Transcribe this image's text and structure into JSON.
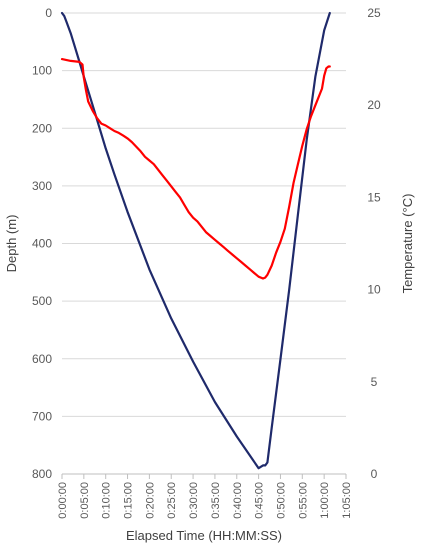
{
  "chart_data": {
    "type": "line",
    "xlabel": "Elapsed Time (HH:MM:SS)",
    "ylabel_left": "Depth (m)",
    "ylabel_right": "Temperature (°C)",
    "x_ticks": [
      "0:00:00",
      "0:05:00",
      "0:10:00",
      "0:15:00",
      "0:20:00",
      "0:25:00",
      "0:30:00",
      "0:35:00",
      "0:40:00",
      "0:45:00",
      "0:50:00",
      "0:55:00",
      "1:00:00",
      "1:05:00"
    ],
    "xlim_minutes": [
      0,
      65
    ],
    "y_left_ticks": [
      0,
      100,
      200,
      300,
      400,
      500,
      600,
      700,
      800
    ],
    "y_left_lim": [
      0,
      800
    ],
    "y_left_inverted": true,
    "y_right_ticks": [
      0,
      5,
      10,
      15,
      20,
      25
    ],
    "y_right_lim": [
      0,
      25
    ],
    "grid": "horizontal",
    "legend": "none",
    "series": [
      {
        "axis": "left",
        "color": "#1f2a6b",
        "x_minutes": [
          0,
          0.5,
          1,
          2,
          3,
          4,
          5,
          6,
          8,
          10,
          12,
          15,
          20,
          25,
          30,
          35,
          40,
          45,
          46,
          46.5,
          47,
          48,
          50,
          52,
          54,
          56,
          58,
          60,
          61.3
        ],
        "y": [
          0,
          5,
          15,
          35,
          60,
          85,
          110,
          135,
          185,
          235,
          280,
          345,
          445,
          530,
          605,
          675,
          735,
          790,
          785,
          785,
          780,
          720,
          600,
          480,
          350,
          220,
          110,
          30,
          0
        ]
      },
      {
        "axis": "right",
        "color": "#ff0000",
        "x_minutes": [
          0,
          2,
          4,
          4.7,
          5,
          5.5,
          6,
          7,
          8,
          9,
          10,
          11,
          12,
          13,
          14,
          15,
          16,
          17,
          18,
          19,
          20,
          21,
          22,
          23,
          24,
          25,
          26,
          27,
          28,
          29,
          30,
          31,
          32,
          33,
          34,
          35,
          36,
          37,
          38,
          39,
          40,
          41,
          42,
          43,
          44,
          45,
          46,
          46.5,
          47,
          48,
          49,
          50,
          51,
          52,
          53,
          54,
          55,
          56,
          57,
          58,
          59,
          59.5,
          60,
          60.5,
          61,
          61.3
        ],
        "y": [
          22.5,
          22.4,
          22.35,
          22.2,
          21.5,
          20.8,
          20.2,
          19.7,
          19.3,
          19.0,
          18.9,
          18.75,
          18.6,
          18.5,
          18.35,
          18.2,
          18.0,
          17.75,
          17.5,
          17.2,
          17.0,
          16.8,
          16.5,
          16.2,
          15.9,
          15.6,
          15.3,
          15.0,
          14.6,
          14.2,
          13.9,
          13.7,
          13.4,
          13.1,
          12.9,
          12.7,
          12.5,
          12.3,
          12.1,
          11.9,
          11.7,
          11.5,
          11.3,
          11.1,
          10.9,
          10.7,
          10.6,
          10.65,
          10.8,
          11.3,
          12.0,
          12.6,
          13.3,
          14.5,
          15.8,
          16.8,
          17.8,
          18.7,
          19.4,
          20.0,
          20.6,
          20.9,
          21.6,
          22.0,
          22.1,
          22.1
        ]
      }
    ]
  }
}
